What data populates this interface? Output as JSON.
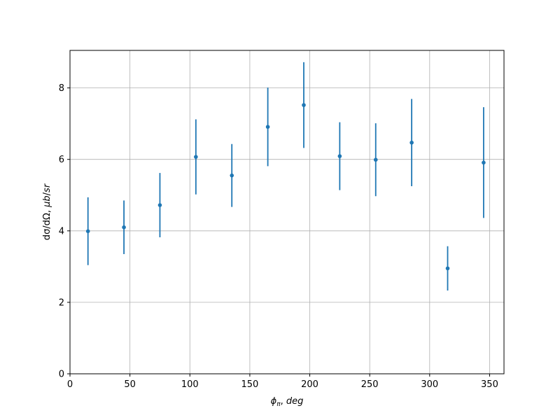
{
  "chart_data": {
    "type": "scatter",
    "xlabel": "φπ, deg",
    "ylabel": "dσ/dΩ, μb/sr",
    "xlim": [
      0,
      362
    ],
    "ylim": [
      0,
      9.05
    ],
    "xticks": [
      0,
      50,
      100,
      150,
      200,
      250,
      300,
      350
    ],
    "yticks": [
      0,
      2,
      4,
      6,
      8
    ],
    "grid": true,
    "color": "#1f77b4",
    "series": [
      {
        "x": [
          15,
          45,
          75,
          105,
          135,
          165,
          195,
          225,
          255,
          285,
          315,
          345
        ],
        "y": [
          3.99,
          4.1,
          4.72,
          6.07,
          5.55,
          6.91,
          7.52,
          6.09,
          5.99,
          6.47,
          2.95,
          5.91
        ],
        "yerr": [
          0.95,
          0.75,
          0.9,
          1.05,
          0.88,
          1.1,
          1.2,
          0.95,
          1.02,
          1.22,
          0.62,
          1.55
        ]
      }
    ]
  }
}
